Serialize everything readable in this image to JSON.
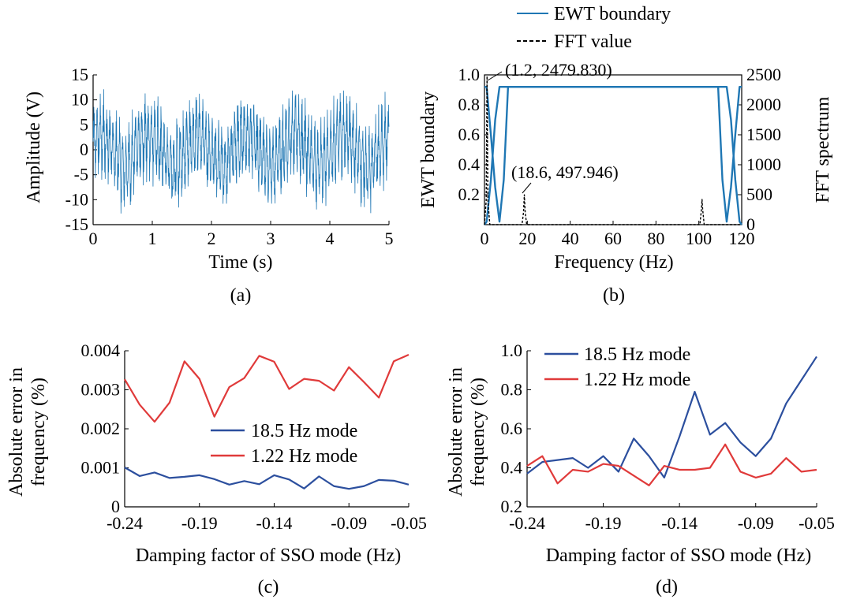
{
  "colors": {
    "blue": "#1f77b4",
    "navy": "#2c4f9e",
    "red": "#e03a3a",
    "axis": "#000000"
  },
  "chart_data": [
    {
      "panel": "a",
      "caption": "(a)",
      "type": "line",
      "xlabel": "Time (s)",
      "ylabel": "Amplitude (V)",
      "xlim": [
        0,
        5
      ],
      "ylim": [
        -15,
        15
      ],
      "xticks": [
        "0",
        "1",
        "2",
        "3",
        "4",
        "5"
      ],
      "yticks": [
        "15",
        "10",
        "5",
        "0",
        "-5",
        "-10",
        "-15"
      ],
      "series": [
        {
          "color": "#1f77b4",
          "signal": "dense oscillation, amplitude about ±12 V over 0–5 s"
        }
      ]
    },
    {
      "panel": "b",
      "caption": "(b)",
      "type": "line",
      "xlabel": "Frequency (Hz)",
      "ylabel": "EWT boundary",
      "y2label": "FFT spectrum",
      "xlim": [
        0,
        120
      ],
      "ylim": [
        0,
        1.0
      ],
      "y2lim": [
        0,
        2500
      ],
      "xticks": [
        "0",
        "20",
        "40",
        "60",
        "80",
        "100",
        "120"
      ],
      "yticks": [
        "1.0",
        "0.8",
        "0.6",
        "0.4",
        "0.2"
      ],
      "y2ticks": [
        "2500",
        "2000",
        "1500",
        "1000",
        "500",
        "0"
      ],
      "legend": [
        "EWT boundary",
        "FFT value"
      ],
      "legend_position": "top",
      "annotations": [
        "(1.2, 2479.830)",
        "(18.6, 497.946)"
      ],
      "series": [
        {
          "name": "EWT boundary",
          "color": "#1f77b4",
          "x": [
            0,
            1,
            3,
            5,
            7,
            9,
            11,
            109,
            111,
            113,
            115,
            117,
            119,
            120
          ],
          "y": [
            0.92,
            0.92,
            0.6,
            0.25,
            0.02,
            0.3,
            0.92,
            0.92,
            0.3,
            0.02,
            0.25,
            0.6,
            0.92,
            0.92
          ]
        },
        {
          "name": "EWT boundary",
          "color": "#1f77b4",
          "x": [
            0,
            1,
            3,
            5,
            7,
            113,
            115,
            117,
            119,
            120
          ],
          "y": [
            0.0,
            0.02,
            0.3,
            0.7,
            0.92,
            0.92,
            0.7,
            0.3,
            0.02,
            0.0
          ]
        },
        {
          "name": "FFT value",
          "color": "#000000",
          "dash": true,
          "x": [
            0,
            0.8,
            1.2,
            1.6,
            2.5,
            17.5,
            18.2,
            18.6,
            19.0,
            19.7,
            100.5,
            101.2,
            101.5,
            101.8,
            102.5,
            120
          ],
          "y2": [
            0,
            400,
            2479.83,
            400,
            0,
            0,
            200,
            497.946,
            200,
            0,
            0,
            250,
            420,
            250,
            0,
            0
          ]
        }
      ]
    },
    {
      "panel": "c",
      "caption": "(c)",
      "type": "line",
      "xlabel": "Damping factor of SSO mode (Hz)",
      "ylabel": "Absolute error in frequency (%)",
      "ylabel_lines": [
        "Absolute error in",
        "frequency (%)"
      ],
      "xlim": [
        -0.24,
        -0.05
      ],
      "ylim": [
        0,
        0.004
      ],
      "xticks": [
        "-0.24",
        "-0.19",
        "-0.14",
        "-0.09",
        "-0.05"
      ],
      "yticks": [
        "0.004",
        "0.003",
        "0.002",
        "0.001",
        "0"
      ],
      "legend": [
        "18.5 Hz mode",
        "1.22 Hz mode"
      ],
      "legend_position": "center-right",
      "x": [
        -0.24,
        -0.23,
        -0.22,
        -0.21,
        -0.2,
        -0.19,
        -0.18,
        -0.17,
        -0.16,
        -0.15,
        -0.14,
        -0.13,
        -0.12,
        -0.11,
        -0.1,
        -0.09,
        -0.08,
        -0.07,
        -0.06,
        -0.05
      ],
      "series": [
        {
          "name": "18.5 Hz mode",
          "color": "#2c4f9e",
          "values": [
            0.00101,
            0.00079,
            0.00088,
            0.00074,
            0.00077,
            0.00081,
            0.00071,
            0.00057,
            0.00066,
            0.00058,
            0.00081,
            0.0007,
            0.00047,
            0.00078,
            0.00053,
            0.00046,
            0.00053,
            0.00069,
            0.00067,
            0.00057
          ]
        },
        {
          "name": "1.22 Hz mode",
          "color": "#e03a3a",
          "values": [
            0.00327,
            0.00262,
            0.00218,
            0.00267,
            0.00373,
            0.00328,
            0.00231,
            0.00307,
            0.0033,
            0.00387,
            0.00372,
            0.00302,
            0.00328,
            0.00323,
            0.00298,
            0.00358,
            0.0032,
            0.0028,
            0.00373,
            0.0039
          ]
        }
      ]
    },
    {
      "panel": "d",
      "caption": "(d)",
      "type": "line",
      "xlabel": "Damping factor of SSO mode (Hz)",
      "ylabel": "Absolute error in frequency (%)",
      "ylabel_lines": [
        "Absolute error in",
        "frequency (%)"
      ],
      "xlim": [
        -0.24,
        -0.05
      ],
      "ylim": [
        0.2,
        1.0
      ],
      "xticks": [
        "-0.24",
        "-0.19",
        "-0.14",
        "-0.09",
        "-0.05"
      ],
      "yticks": [
        "1.0",
        "0.8",
        "0.6",
        "0.4",
        "0.2"
      ],
      "legend": [
        "18.5 Hz mode",
        "1.22 Hz mode"
      ],
      "legend_position": "top-left",
      "x": [
        -0.24,
        -0.23,
        -0.22,
        -0.21,
        -0.2,
        -0.19,
        -0.18,
        -0.17,
        -0.16,
        -0.15,
        -0.14,
        -0.13,
        -0.12,
        -0.11,
        -0.1,
        -0.09,
        -0.08,
        -0.07,
        -0.06,
        -0.05
      ],
      "series": [
        {
          "name": "18.5 Hz mode",
          "color": "#2c4f9e",
          "values": [
            0.37,
            0.43,
            0.44,
            0.45,
            0.4,
            0.46,
            0.38,
            0.55,
            0.46,
            0.35,
            0.56,
            0.79,
            0.57,
            0.63,
            0.53,
            0.46,
            0.55,
            0.73,
            0.85,
            0.97
          ]
        },
        {
          "name": "1.22 Hz mode",
          "color": "#e03a3a",
          "values": [
            0.41,
            0.46,
            0.32,
            0.39,
            0.38,
            0.42,
            0.41,
            0.36,
            0.31,
            0.41,
            0.39,
            0.39,
            0.4,
            0.52,
            0.38,
            0.35,
            0.37,
            0.45,
            0.38,
            0.39
          ]
        }
      ]
    }
  ]
}
